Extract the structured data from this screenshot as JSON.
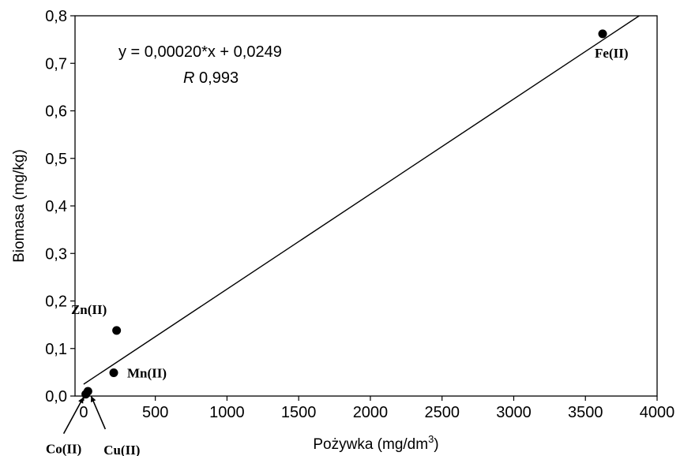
{
  "chart_data": {
    "type": "scatter",
    "xlabel": "Pożywka (mg/dm",
    "xlabel_sup": "3",
    "xlabel_end": ")",
    "ylabel": "Biomasa (mg/kg)",
    "xlim": [
      -60,
      4000
    ],
    "ylim": [
      0,
      0.8
    ],
    "x_ticks": [
      {
        "value": 0,
        "label": "0"
      },
      {
        "value": 500,
        "label": "500"
      },
      {
        "value": 1000,
        "label": "1000"
      },
      {
        "value": 1500,
        "label": "1500"
      },
      {
        "value": 2000,
        "label": "2000"
      },
      {
        "value": 2500,
        "label": "2500"
      },
      {
        "value": 3000,
        "label": "3000"
      },
      {
        "value": 3500,
        "label": "3500"
      },
      {
        "value": 4000,
        "label": "4000"
      }
    ],
    "y_ticks": [
      {
        "value": 0.0,
        "label": "0,0"
      },
      {
        "value": 0.1,
        "label": "0,1"
      },
      {
        "value": 0.2,
        "label": "0,2"
      },
      {
        "value": 0.3,
        "label": "0,3"
      },
      {
        "value": 0.4,
        "label": "0,4"
      },
      {
        "value": 0.5,
        "label": "0,5"
      },
      {
        "value": 0.6,
        "label": "0,6"
      },
      {
        "value": 0.7,
        "label": "0,7"
      },
      {
        "value": 0.8,
        "label": "0,8"
      }
    ],
    "points": [
      {
        "label": "Fe(II)",
        "x": 3620,
        "y": 0.762
      },
      {
        "label": "Zn(II)",
        "x": 230,
        "y": 0.138
      },
      {
        "label": "Mn(II)",
        "x": 210,
        "y": 0.049
      },
      {
        "label": "Cu(II)",
        "x": 30,
        "y": 0.01
      },
      {
        "label": "Co(II)",
        "x": 15,
        "y": 0.004
      }
    ],
    "regression": {
      "slope": 0.0002,
      "intercept": 0.0249,
      "equation": "y = 0,00020*x + 0,0249",
      "r_symbol": "R",
      "r_value": "0,993"
    },
    "grid": false
  }
}
